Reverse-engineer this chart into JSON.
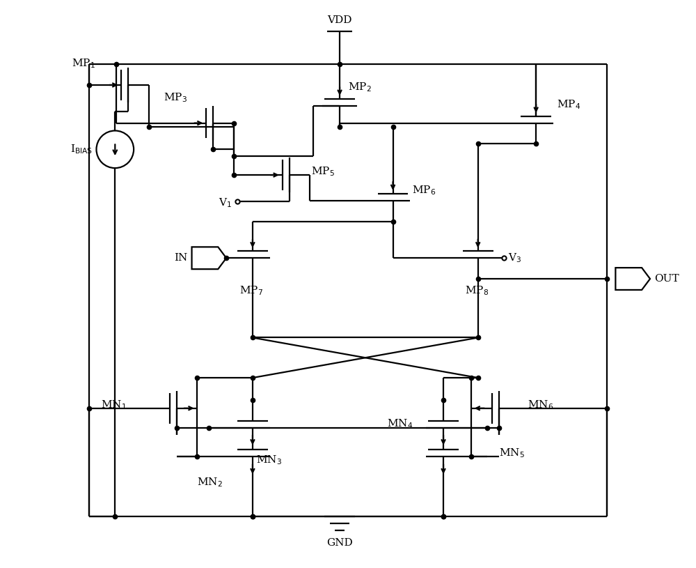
{
  "bg": "#ffffff",
  "lc": "#000000",
  "lw": 1.6,
  "ds": 4.5,
  "fs": 11,
  "figsize": [
    10.0,
    8.15
  ],
  "dpi": 100,
  "xlim": [
    0,
    10
  ],
  "ylim": [
    0,
    8.15
  ]
}
